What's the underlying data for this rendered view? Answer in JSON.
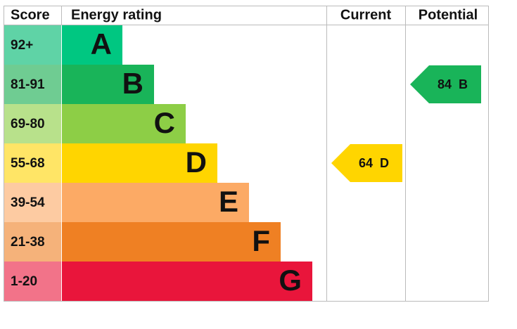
{
  "headers": {
    "score": "Score",
    "rating": "Energy rating",
    "current": "Current",
    "potential": "Potential"
  },
  "bands": [
    {
      "score": "92+",
      "letter": "A",
      "color": "#00c781",
      "score_color": "#5fd3a6"
    },
    {
      "score": "81-91",
      "letter": "B",
      "color": "#19b459",
      "score_color": "#6fcc92"
    },
    {
      "score": "69-80",
      "letter": "C",
      "color": "#8dce46",
      "score_color": "#b8e18b"
    },
    {
      "score": "55-68",
      "letter": "D",
      "color": "#ffd500",
      "score_color": "#ffe566"
    },
    {
      "score": "39-54",
      "letter": "E",
      "color": "#fcaa65",
      "score_color": "#fdcba2"
    },
    {
      "score": "21-38",
      "letter": "F",
      "color": "#ef8023",
      "score_color": "#f5b27a"
    },
    {
      "score": "1-20",
      "letter": "G",
      "color": "#e9153b",
      "score_color": "#f27389"
    }
  ],
  "current": {
    "value": 64,
    "letter": "D"
  },
  "potential": {
    "value": 84,
    "letter": "B"
  }
}
